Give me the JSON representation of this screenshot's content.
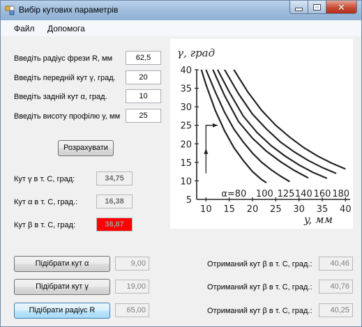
{
  "window": {
    "title": "Вибір кутових параметрів"
  },
  "menu": {
    "file": "Файл",
    "help": "Допомога"
  },
  "inputs": [
    {
      "label": "Введіть радіус фрези R, мм",
      "value": "62,5"
    },
    {
      "label": "Введіть передній кут γ, град.",
      "value": "20"
    },
    {
      "label": "Введіть задній кут α, град.",
      "value": "10"
    },
    {
      "label": "Введіть висоту профілю y, мм",
      "value": "25"
    }
  ],
  "calculate_button": "Розрахувати",
  "results": [
    {
      "label": "Кут γ в т. С, град:",
      "value": "34,75"
    },
    {
      "label": "Кут α в т. С, град.:",
      "value": "16,38"
    },
    {
      "label": "Кут β в т. С, град:",
      "value": "38,87",
      "status_color": "#ff0000"
    }
  ],
  "selections": [
    {
      "button": "Підібрати кут α",
      "value": "9,00",
      "result_label": "Отриманий кут β в т. С, град.:",
      "result_value": "40,46"
    },
    {
      "button": "Підібрати кут γ",
      "value": "19,00",
      "result_label": "Отриманий кут β в т. С, град.:",
      "result_value": "40,76"
    },
    {
      "button": "Підібрати радіус R",
      "value": "65,00",
      "result_label": "Отриманий кут β в т. С, град.:",
      "result_value": "40,25"
    }
  ],
  "chart_data": {
    "type": "line",
    "ylabel": "γ, град",
    "xlabel": "y, мм",
    "x_ticks": [
      "10",
      "15",
      "20",
      "25",
      "30",
      "35",
      "40"
    ],
    "y_ticks": [
      "5",
      "10",
      "15",
      "20",
      "25",
      "30",
      "35",
      "40"
    ],
    "xlim": [
      8,
      41
    ],
    "ylim": [
      5,
      40
    ],
    "curve_labels": [
      "α=80",
      "100",
      "125",
      "140",
      "160",
      "180"
    ],
    "series": [
      {
        "name": "α=80",
        "x": [
          9,
          10,
          12,
          14,
          16,
          18,
          20,
          22,
          23
        ],
        "y": [
          40,
          36,
          29,
          23.5,
          19,
          15.5,
          12.5,
          10.3,
          9.5
        ]
      },
      {
        "name": "100",
        "x": [
          10,
          12,
          14,
          16,
          18,
          20,
          22,
          24,
          26,
          28
        ],
        "y": [
          40,
          34,
          28.5,
          24,
          20.5,
          17.5,
          15,
          13,
          11.3,
          9.8
        ]
      },
      {
        "name": "125",
        "x": [
          11.5,
          14,
          17,
          20,
          23,
          26,
          29,
          32
        ],
        "y": [
          40,
          33,
          26,
          21.5,
          18,
          15.2,
          12.8,
          10.8
        ]
      },
      {
        "name": "140",
        "x": [
          12.5,
          15,
          18,
          21,
          24,
          27,
          30,
          33,
          36
        ],
        "y": [
          40,
          34,
          27.5,
          23,
          19.5,
          16.7,
          14.3,
          12.3,
          10.7
        ]
      },
      {
        "name": "160",
        "x": [
          14,
          17,
          20,
          23,
          26,
          29,
          32,
          35,
          38
        ],
        "y": [
          40,
          33.5,
          28,
          24,
          20.5,
          17.8,
          15.5,
          13.6,
          12
        ]
      },
      {
        "name": "180",
        "x": [
          16,
          19,
          22,
          25,
          28,
          31,
          34,
          37,
          40
        ],
        "y": [
          40,
          34,
          29,
          25,
          21.8,
          19,
          16.7,
          14.8,
          13.2
        ]
      }
    ],
    "example_path": {
      "x": [
        10,
        10,
        12.5
      ],
      "y": [
        12,
        25,
        25
      ]
    }
  }
}
